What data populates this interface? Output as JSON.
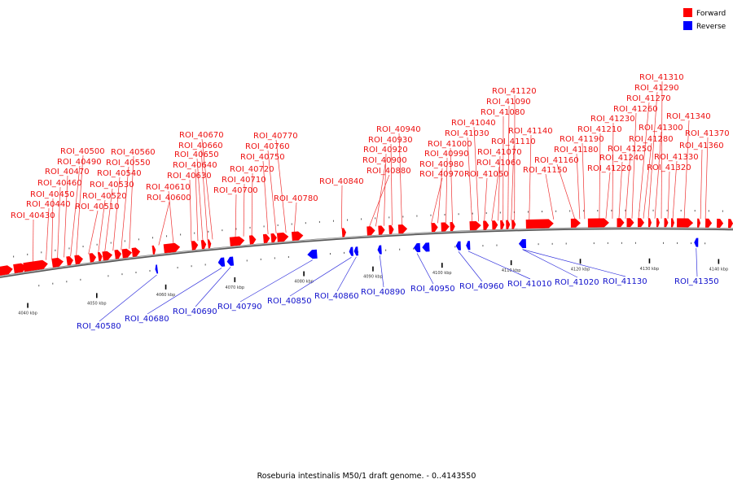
{
  "legend": {
    "forward_label": "Forward",
    "reverse_label": "Reverse",
    "forward_color": "#ff0000",
    "reverse_color": "#0000ff"
  },
  "caption": "Roseburia intestinalis M50/1 draft genome. - 0..4143550",
  "backbone_color": "#888888",
  "scale_ticks": [
    {
      "kbp": 4040,
      "label": "4040 kbp"
    },
    {
      "kbp": 4050,
      "label": "4050 kbp"
    },
    {
      "kbp": 4060,
      "label": "4060 kbp"
    },
    {
      "kbp": 4070,
      "label": "4070 kbp"
    },
    {
      "kbp": 4080,
      "label": "4080 kbp"
    },
    {
      "kbp": 4090,
      "label": "4090 kbp"
    },
    {
      "kbp": 4100,
      "label": "4100 kbp"
    },
    {
      "kbp": 4110,
      "label": "4110 kbp"
    },
    {
      "kbp": 4120,
      "label": "4120 kbp"
    },
    {
      "kbp": 4130,
      "label": "4130 kbp"
    },
    {
      "kbp": 4140,
      "label": "4140 kbp"
    }
  ],
  "forward_labels": [
    "ROI_40430",
    "ROI_40440",
    "ROI_40450",
    "ROI_40460",
    "ROI_40470",
    "ROI_40490",
    "ROI_40500",
    "ROI_40510",
    "ROI_40520",
    "ROI_40530",
    "ROI_40540",
    "ROI_40550",
    "ROI_40560",
    "ROI_40600",
    "ROI_40610",
    "ROI_40630",
    "ROI_40640",
    "ROI_40650",
    "ROI_40660",
    "ROI_40670",
    "ROI_40700",
    "ROI_40710",
    "ROI_40720",
    "ROI_40750",
    "ROI_40760",
    "ROI_40770",
    "ROI_40780",
    "ROI_40840",
    "ROI_40880",
    "ROI_40900",
    "ROI_40920",
    "ROI_40930",
    "ROI_40940",
    "ROI_40970",
    "ROI_40980",
    "ROI_40990",
    "ROI_41000",
    "ROI_41030",
    "ROI_41040",
    "ROI_41050",
    "ROI_41060",
    "ROI_41070",
    "ROI_41080",
    "ROI_41090",
    "ROI_41110",
    "ROI_41120",
    "ROI_41140",
    "ROI_41150",
    "ROI_41160",
    "ROI_41180",
    "ROI_41190",
    "ROI_41210",
    "ROI_41220",
    "ROI_41230",
    "ROI_41240",
    "ROI_41250",
    "ROI_41260",
    "ROI_41270",
    "ROI_41280",
    "ROI_41290",
    "ROI_41300",
    "ROI_41310",
    "ROI_41320",
    "ROI_41330",
    "ROI_41340",
    "ROI_41360",
    "ROI_41370"
  ],
  "reverse_labels": [
    "ROI_40580",
    "ROI_40680",
    "ROI_40690",
    "ROI_40790",
    "ROI_40850",
    "ROI_40860",
    "ROI_40890",
    "ROI_40950",
    "ROI_40960",
    "ROI_41010",
    "ROI_41020",
    "ROI_41130",
    "ROI_41350"
  ]
}
